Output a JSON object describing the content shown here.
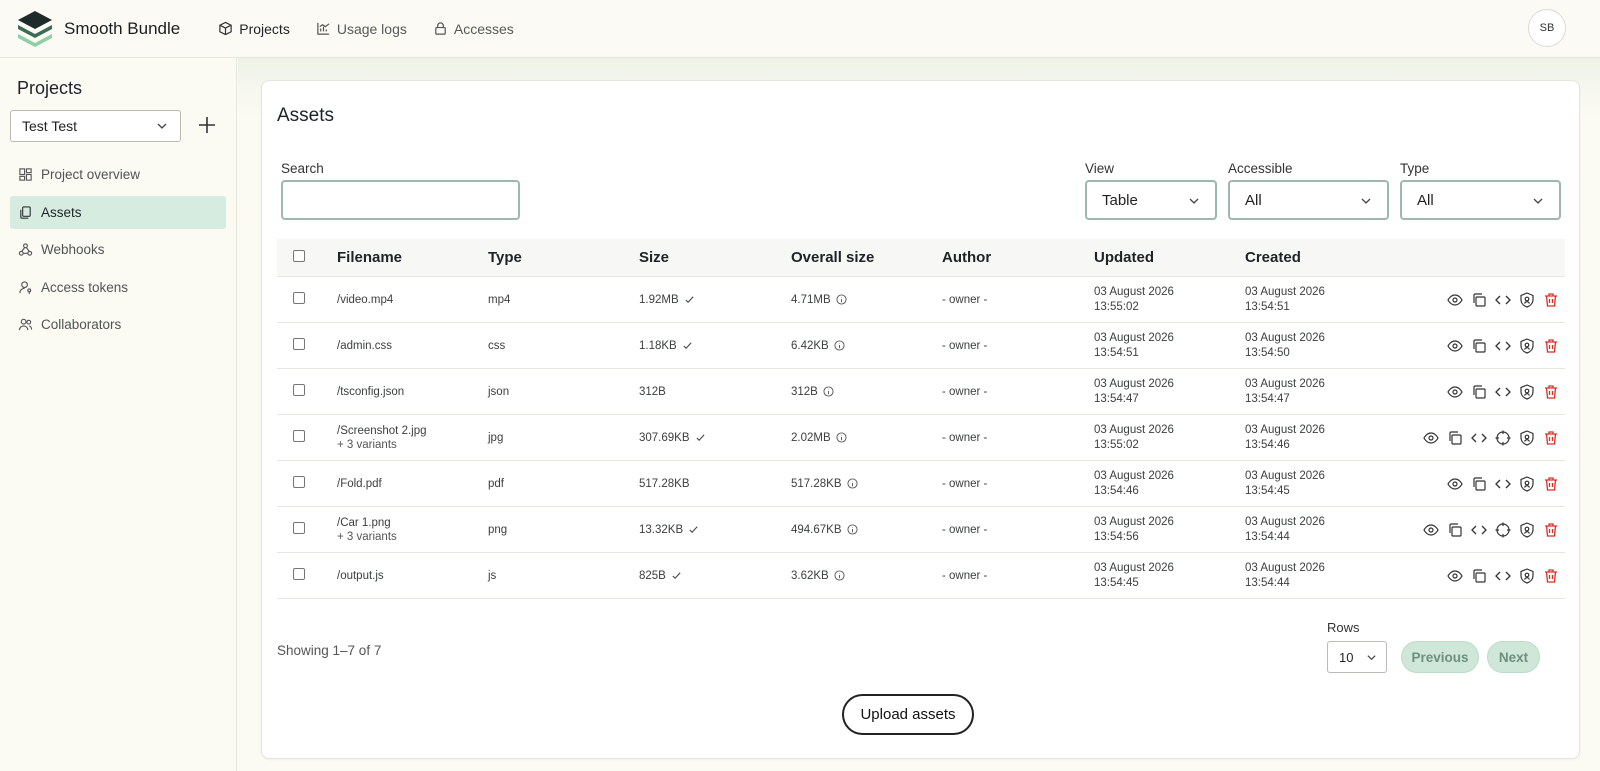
{
  "app": {
    "brand_name": "Smooth Bundle",
    "avatar_initials": "SB"
  },
  "topnav": [
    {
      "label": "Projects",
      "icon": "cube-icon",
      "active": true
    },
    {
      "label": "Usage logs",
      "icon": "chart-icon",
      "active": false
    },
    {
      "label": "Accesses",
      "icon": "lock-icon",
      "active": false
    }
  ],
  "sidebar": {
    "title": "Projects",
    "project_select_value": "Test Test",
    "items": [
      {
        "label": "Project overview",
        "icon": "dashboard-icon",
        "active": false
      },
      {
        "label": "Assets",
        "icon": "files-icon",
        "active": true
      },
      {
        "label": "Webhooks",
        "icon": "webhook-icon",
        "active": false
      },
      {
        "label": "Access tokens",
        "icon": "user-key-icon",
        "active": false
      },
      {
        "label": "Collaborators",
        "icon": "users-icon",
        "active": false
      }
    ]
  },
  "assets": {
    "title": "Assets",
    "search_label": "Search",
    "search_value": "",
    "filters": {
      "view_label": "View",
      "view_value": "Table",
      "accessible_label": "Accessible",
      "accessible_value": "All",
      "type_label": "Type",
      "type_value": "All"
    },
    "columns": [
      "Filename",
      "Type",
      "Size",
      "Overall size",
      "Author",
      "Updated",
      "Created"
    ],
    "rows": [
      {
        "filename": "/video.mp4",
        "variants": "",
        "type": "mp4",
        "size": "1.92MB",
        "size_check": true,
        "overall": "4.71MB",
        "author": "- owner -",
        "updated_date": "03 August 2026",
        "updated_time": "13:55:02",
        "created_date": "03 August 2026",
        "created_time": "13:54:51",
        "has_target": false
      },
      {
        "filename": "/admin.css",
        "variants": "",
        "type": "css",
        "size": "1.18KB",
        "size_check": true,
        "overall": "6.42KB",
        "author": "- owner -",
        "updated_date": "03 August 2026",
        "updated_time": "13:54:51",
        "created_date": "03 August 2026",
        "created_time": "13:54:50",
        "has_target": false
      },
      {
        "filename": "/tsconfig.json",
        "variants": "",
        "type": "json",
        "size": "312B",
        "size_check": false,
        "overall": "312B",
        "author": "- owner -",
        "updated_date": "03 August 2026",
        "updated_time": "13:54:47",
        "created_date": "03 August 2026",
        "created_time": "13:54:47",
        "has_target": false
      },
      {
        "filename": "/Screenshot 2.jpg",
        "variants": "+ 3 variants",
        "type": "jpg",
        "size": "307.69KB",
        "size_check": true,
        "overall": "2.02MB",
        "author": "- owner -",
        "updated_date": "03 August 2026",
        "updated_time": "13:55:02",
        "created_date": "03 August 2026",
        "created_time": "13:54:46",
        "has_target": true
      },
      {
        "filename": "/Fold.pdf",
        "variants": "",
        "type": "pdf",
        "size": "517.28KB",
        "size_check": false,
        "overall": "517.28KB",
        "author": "- owner -",
        "updated_date": "03 August 2026",
        "updated_time": "13:54:46",
        "created_date": "03 August 2026",
        "created_time": "13:54:45",
        "has_target": false
      },
      {
        "filename": "/Car 1.png",
        "variants": "+ 3 variants",
        "type": "png",
        "size": "13.32KB",
        "size_check": true,
        "overall": "494.67KB",
        "author": "- owner -",
        "updated_date": "03 August 2026",
        "updated_time": "13:54:56",
        "created_date": "03 August 2026",
        "created_time": "13:54:44",
        "has_target": true
      },
      {
        "filename": "/output.js",
        "variants": "",
        "type": "js",
        "size": "825B",
        "size_check": true,
        "overall": "3.62KB",
        "author": "- owner -",
        "updated_date": "03 August 2026",
        "updated_time": "13:54:45",
        "created_date": "03 August 2026",
        "created_time": "13:54:44",
        "has_target": false
      }
    ],
    "showing": "Showing 1–7 of 7",
    "rows_label": "Rows",
    "rows_value": "10",
    "previous_label": "Previous",
    "next_label": "Next",
    "upload_label": "Upload assets"
  },
  "colors": {
    "accent_active_bg": "#d7ece0",
    "delete_red": "#d93025",
    "input_border": "#9fb8ad"
  }
}
